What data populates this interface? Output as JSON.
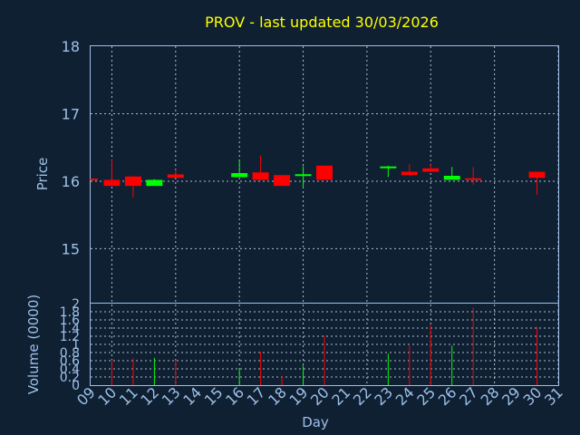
{
  "chart_data": {
    "type": "candlestick",
    "title": "PROV - last updated 30/03/2026",
    "xlabel": "Day",
    "x_ticks": [
      "09",
      "10",
      "11",
      "12",
      "13",
      "14",
      "15",
      "16",
      "17",
      "18",
      "19",
      "20",
      "21",
      "22",
      "23",
      "24",
      "25",
      "26",
      "27",
      "28",
      "29",
      "30",
      "31"
    ],
    "price_panel": {
      "ylabel": "Price",
      "ylim": [
        14.2,
        18.0
      ],
      "y_ticks": [
        15,
        16,
        17,
        18
      ],
      "candles": [
        {
          "day": "09",
          "open": 16.03,
          "high": 16.04,
          "low": 16.01,
          "close": 16.02
        },
        {
          "day": "10",
          "open": 16.02,
          "high": 16.33,
          "low": 15.93,
          "close": 15.93
        },
        {
          "day": "11",
          "open": 16.07,
          "high": 16.07,
          "low": 15.76,
          "close": 15.93
        },
        {
          "day": "12",
          "open": 15.93,
          "high": 16.03,
          "low": 15.93,
          "close": 16.02
        },
        {
          "day": "13",
          "open": 16.1,
          "high": 16.17,
          "low": 16.05,
          "close": 16.05
        },
        {
          "day": "16",
          "open": 16.06,
          "high": 16.32,
          "low": 16.06,
          "close": 16.12
        },
        {
          "day": "17",
          "open": 16.13,
          "high": 16.38,
          "low": 16.01,
          "close": 16.02
        },
        {
          "day": "18",
          "open": 16.09,
          "high": 16.09,
          "low": 15.93,
          "close": 15.93
        },
        {
          "day": "19",
          "open": 16.08,
          "high": 16.22,
          "low": 15.9,
          "close": 16.1
        },
        {
          "day": "20",
          "open": 16.23,
          "high": 16.23,
          "low": 16.02,
          "close": 16.02
        },
        {
          "day": "23",
          "open": 16.2,
          "high": 16.23,
          "low": 16.06,
          "close": 16.21
        },
        {
          "day": "24",
          "open": 16.14,
          "high": 16.25,
          "low": 16.09,
          "close": 16.09
        },
        {
          "day": "25",
          "open": 16.19,
          "high": 16.25,
          "low": 16.14,
          "close": 16.14
        },
        {
          "day": "26",
          "open": 16.02,
          "high": 16.21,
          "low": 16.02,
          "close": 16.08
        },
        {
          "day": "27",
          "open": 16.04,
          "high": 16.21,
          "low": 15.95,
          "close": 16.02
        },
        {
          "day": "30",
          "open": 16.14,
          "high": 16.14,
          "low": 15.8,
          "close": 16.05
        }
      ]
    },
    "volume_panel": {
      "ylabel": "Volume (0000)",
      "ylim": [
        0,
        2
      ],
      "y_ticks": [
        "0",
        "0.2",
        "0.4",
        "0.6",
        "0.8",
        "1",
        "1.2",
        "1.4",
        "1.6",
        "1.8",
        "2"
      ],
      "values": [
        {
          "day": "10",
          "volume": 0.62,
          "dir": "down"
        },
        {
          "day": "11",
          "volume": 0.66,
          "dir": "down"
        },
        {
          "day": "12",
          "volume": 0.67,
          "dir": "up"
        },
        {
          "day": "13",
          "volume": 0.62,
          "dir": "down"
        },
        {
          "day": "16",
          "volume": 0.42,
          "dir": "up"
        },
        {
          "day": "17",
          "volume": 0.82,
          "dir": "down"
        },
        {
          "day": "18",
          "volume": 0.22,
          "dir": "down"
        },
        {
          "day": "19",
          "volume": 0.48,
          "dir": "up"
        },
        {
          "day": "20",
          "volume": 1.22,
          "dir": "down"
        },
        {
          "day": "23",
          "volume": 0.77,
          "dir": "up"
        },
        {
          "day": "24",
          "volume": 0.97,
          "dir": "down"
        },
        {
          "day": "25",
          "volume": 1.47,
          "dir": "down"
        },
        {
          "day": "26",
          "volume": 0.97,
          "dir": "up"
        },
        {
          "day": "27",
          "volume": 1.9,
          "dir": "down"
        },
        {
          "day": "30",
          "volume": 1.43,
          "dir": "down"
        }
      ]
    },
    "colors": {
      "background": "#0f2033",
      "up": "#00ff00",
      "down": "#ff0000",
      "axis": "#9ec0e6",
      "title": "#ffff00"
    },
    "grid": true
  }
}
